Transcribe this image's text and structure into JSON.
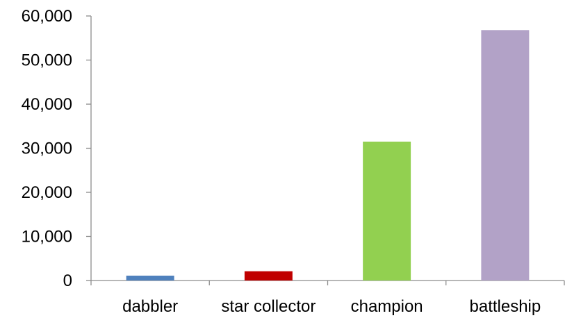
{
  "chart_data": {
    "type": "bar",
    "title": "",
    "xlabel": "",
    "ylabel": "",
    "categories": [
      "dabbler",
      "star collector",
      "champion",
      "battleship"
    ],
    "values": [
      1100,
      2100,
      31500,
      56800
    ],
    "colors": [
      "#4f81bd",
      "#c00000",
      "#92d050",
      "#b2a2c7"
    ],
    "ylim": [
      0,
      60000
    ],
    "yticks": [
      0,
      10000,
      20000,
      30000,
      40000,
      50000,
      60000
    ],
    "ytick_labels": [
      "0",
      "10,000",
      "20,000",
      "30,000",
      "40,000",
      "50,000",
      "60,000"
    ],
    "grid": false,
    "legend": false
  }
}
